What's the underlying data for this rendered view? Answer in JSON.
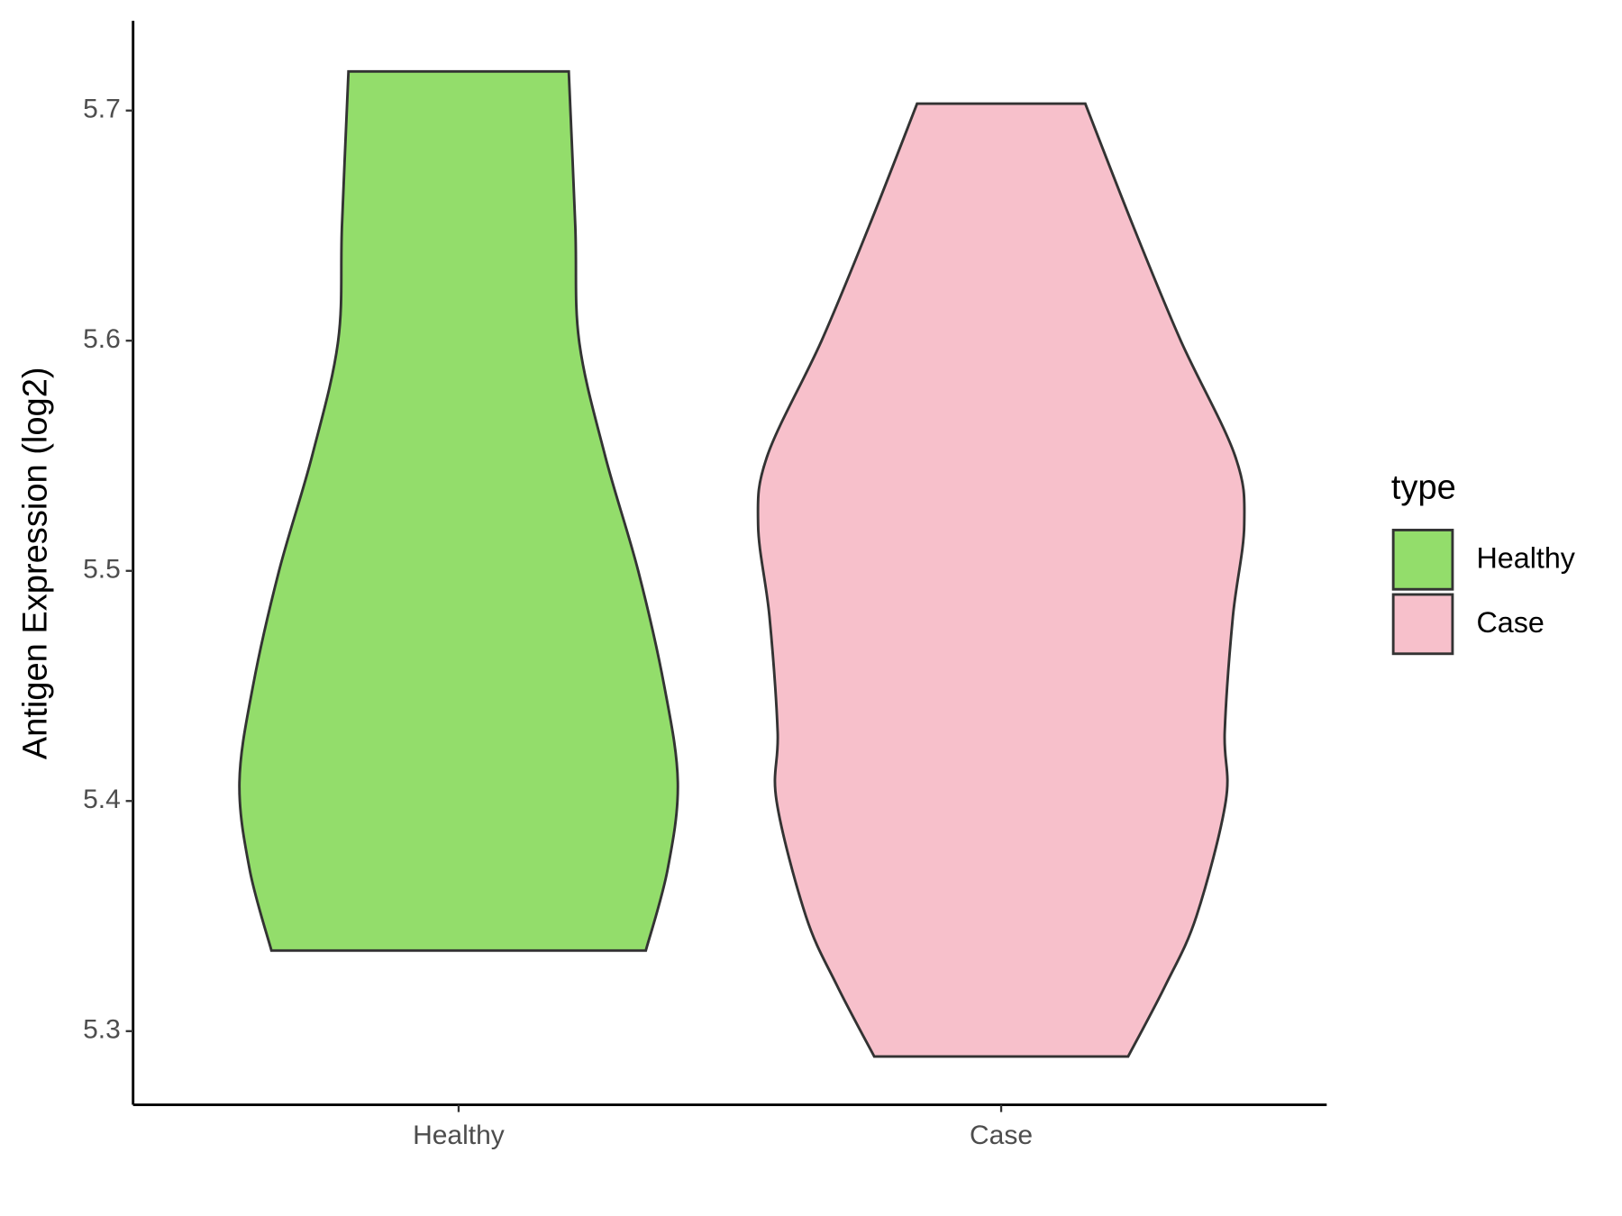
{
  "chart_data": {
    "type": "violin",
    "y_label": "Antigen Expression (log2)",
    "categories": [
      "Healthy",
      "Case"
    ],
    "legend_title": "type",
    "legend_position": "right",
    "ylim": [
      5.268,
      5.739
    ],
    "yticks": [
      5.3,
      5.4,
      5.5,
      5.6,
      5.7
    ],
    "series": [
      {
        "name": "Healthy",
        "color": "#93dd6b",
        "y": [
          5.717,
          5.65,
          5.6,
          5.55,
          5.5,
          5.45,
          5.408,
          5.37,
          5.335
        ],
        "half_width": [
          0.203,
          0.215,
          0.222,
          0.27,
          0.331,
          0.379,
          0.404,
          0.385,
          0.345
        ]
      },
      {
        "name": "Case",
        "color": "#f7c0cb",
        "y": [
          5.703,
          5.65,
          5.6,
          5.55,
          5.52,
          5.48,
          5.43,
          5.4,
          5.35,
          5.32,
          5.289
        ],
        "half_width": [
          0.155,
          0.243,
          0.331,
          0.431,
          0.448,
          0.427,
          0.412,
          0.414,
          0.36,
          0.303,
          0.234
        ]
      }
    ]
  }
}
